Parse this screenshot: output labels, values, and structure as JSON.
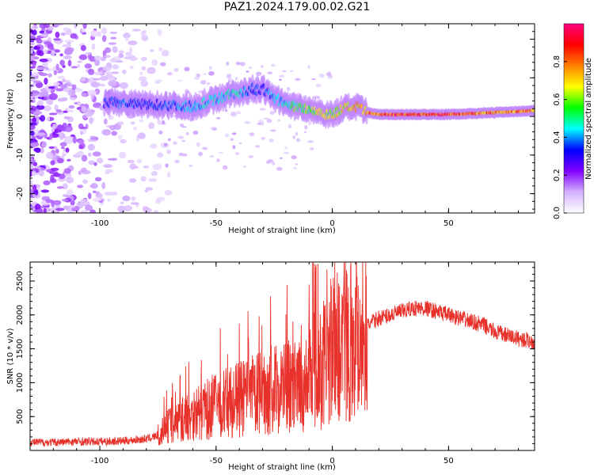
{
  "title": "PAZ1.2024.179.00.02.G21",
  "chart_data": [
    {
      "type": "heatmap",
      "xlabel": "Height of straight line (km)",
      "ylabel": "Frequency (Hz)",
      "xlim": [
        -130,
        87
      ],
      "ylim": [
        -25,
        24
      ],
      "xticks": [
        -100,
        -50,
        0,
        50
      ],
      "yticks": [
        -20,
        -10,
        0,
        10,
        20
      ],
      "colorbar": {
        "label": "Normalized spectral amplitude",
        "range": [
          0,
          1
        ],
        "ticks": [
          "0.0",
          "0.2",
          "0.4",
          "0.6",
          "0.8"
        ],
        "colors": [
          "#ffffff",
          "#d4b0ff",
          "#8000ff",
          "#0000ff",
          "#00ffff",
          "#00ff00",
          "#ffff00",
          "#ff8000",
          "#ff0000",
          "#ff0080"
        ]
      },
      "ridge": {
        "x": [
          -98,
          -90,
          -80,
          -70,
          -60,
          -50,
          -45,
          -40,
          -35,
          -30,
          -25,
          -20,
          -15,
          -10,
          -5,
          0,
          5,
          10,
          15,
          20,
          30,
          50,
          70,
          87
        ],
        "y": [
          3.5,
          3.5,
          3.0,
          3.0,
          2.5,
          4.5,
          5.5,
          6.0,
          7.0,
          7.0,
          5.0,
          3.0,
          2.5,
          2.0,
          1.0,
          0.5,
          2.0,
          2.5,
          1.0,
          0.5,
          0.5,
          0.5,
          1.0,
          1.5
        ],
        "amplitude": [
          0.35,
          0.4,
          0.35,
          0.4,
          0.45,
          0.5,
          0.5,
          0.5,
          0.4,
          0.35,
          0.45,
          0.5,
          0.6,
          0.65,
          0.7,
          0.7,
          0.75,
          0.8,
          0.85,
          0.9,
          0.95,
          0.95,
          0.85,
          0.9
        ]
      },
      "noise_region_x": [
        -130,
        -75
      ]
    },
    {
      "type": "line",
      "xlabel": "Height of straight line (km)",
      "ylabel": "SNR (10 * v/v)",
      "xlim": [
        -130,
        87
      ],
      "ylim": [
        0,
        2780
      ],
      "xticks": [
        -100,
        -50,
        0,
        50
      ],
      "yticks": [
        500,
        1000,
        1500,
        2000,
        2500
      ],
      "color": "#e8312a",
      "series": [
        {
          "x": [
            -130,
            -120,
            -110,
            -100,
            -90,
            -80,
            -75,
            -70,
            -65,
            -60,
            -55,
            -50,
            -45,
            -40,
            -35,
            -30,
            -25,
            -20,
            -15,
            -10,
            -8,
            -5,
            0,
            5,
            10,
            15,
            20,
            25,
            30,
            35,
            40,
            45,
            50,
            55,
            60,
            65,
            70,
            75,
            80,
            87
          ],
          "values": [
            120,
            120,
            130,
            130,
            140,
            170,
            220,
            380,
            450,
            550,
            580,
            680,
            700,
            750,
            800,
            850,
            900,
            950,
            900,
            1000,
            1400,
            1200,
            1500,
            1600,
            1750,
            1850,
            1950,
            2000,
            2050,
            2100,
            2100,
            2050,
            2000,
            1950,
            1900,
            1850,
            1750,
            1700,
            1650,
            1600
          ]
        }
      ]
    }
  ]
}
